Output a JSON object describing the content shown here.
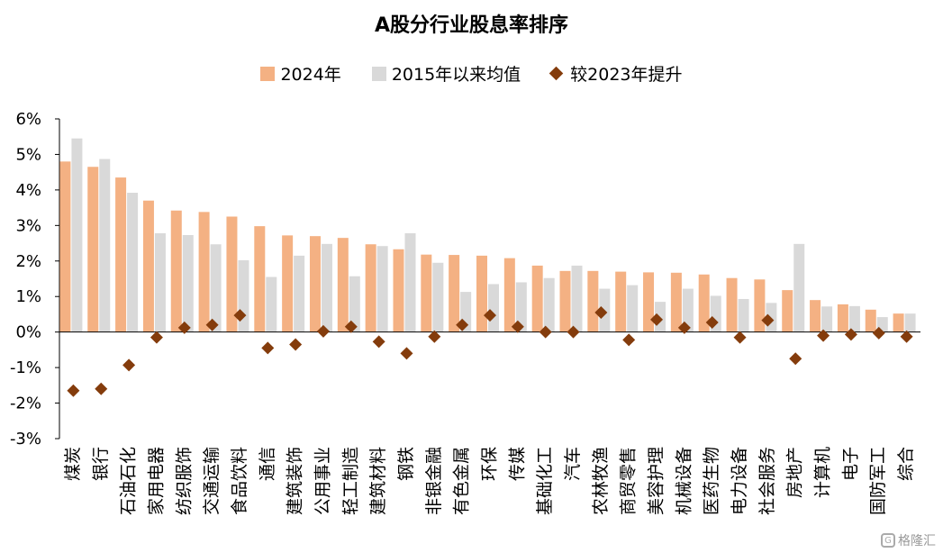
{
  "title": "A股分行业股息率排序",
  "legend": {
    "items": [
      {
        "label": "2024年",
        "color": "#F4B183",
        "shape": "square"
      },
      {
        "label": "2015年以来均值",
        "color": "#D9D9D9",
        "shape": "square"
      },
      {
        "label": "较2023年提升",
        "color": "#843C0C",
        "shape": "diamond"
      }
    ]
  },
  "watermark": "格隆汇",
  "chart_data": {
    "type": "bar",
    "title": "A股分行业股息率排序",
    "xlabel": "",
    "ylabel": "",
    "ylim": [
      -3,
      6
    ],
    "yticks": [
      "6%",
      "5%",
      "4%",
      "3%",
      "2%",
      "1%",
      "0%",
      "-1%",
      "-2%",
      "-3%"
    ],
    "categories": [
      "煤炭",
      "银行",
      "石油石化",
      "家用电器",
      "纺织服饰",
      "交通运输",
      "食品饮料",
      "通信",
      "建筑装饰",
      "公用事业",
      "轻工制造",
      "建筑材料",
      "钢铁",
      "非银金融",
      "有色金属",
      "环保",
      "传媒",
      "基础化工",
      "汽车",
      "农林牧渔",
      "商贸零售",
      "美容护理",
      "机械设备",
      "医药生物",
      "电力设备",
      "社会服务",
      "房地产",
      "计算机",
      "电子",
      "国防军工",
      "综合"
    ],
    "series": [
      {
        "name": "2024年",
        "color": "#F4B183",
        "values": [
          4.8,
          4.65,
          4.35,
          3.7,
          3.42,
          3.38,
          3.25,
          2.98,
          2.72,
          2.7,
          2.65,
          2.47,
          2.33,
          2.18,
          2.17,
          2.15,
          2.08,
          1.87,
          1.72,
          1.72,
          1.7,
          1.68,
          1.67,
          1.62,
          1.52,
          1.48,
          1.18,
          0.9,
          0.78,
          0.63,
          0.52
        ]
      },
      {
        "name": "2015年以来均值",
        "color": "#D9D9D9",
        "values": [
          5.45,
          4.87,
          3.92,
          2.78,
          2.73,
          2.47,
          2.02,
          1.55,
          2.15,
          2.48,
          1.57,
          2.42,
          2.78,
          1.95,
          1.13,
          1.35,
          1.4,
          1.52,
          1.87,
          1.22,
          1.32,
          0.85,
          1.22,
          1.02,
          0.93,
          0.82,
          2.48,
          0.72,
          0.73,
          0.42,
          0.52
        ]
      },
      {
        "name": "较2023年提升",
        "color": "#843C0C",
        "marker": "diamond",
        "values": [
          -1.65,
          -1.6,
          -0.93,
          -0.15,
          0.12,
          0.2,
          0.47,
          -0.45,
          -0.35,
          0.02,
          0.15,
          -0.27,
          -0.6,
          -0.13,
          0.2,
          0.47,
          0.15,
          0.0,
          0.0,
          0.55,
          -0.22,
          0.35,
          0.12,
          0.27,
          -0.15,
          0.33,
          -0.75,
          -0.1,
          -0.07,
          -0.03,
          -0.13
        ]
      }
    ],
    "grid": false,
    "legend_position": "top"
  }
}
